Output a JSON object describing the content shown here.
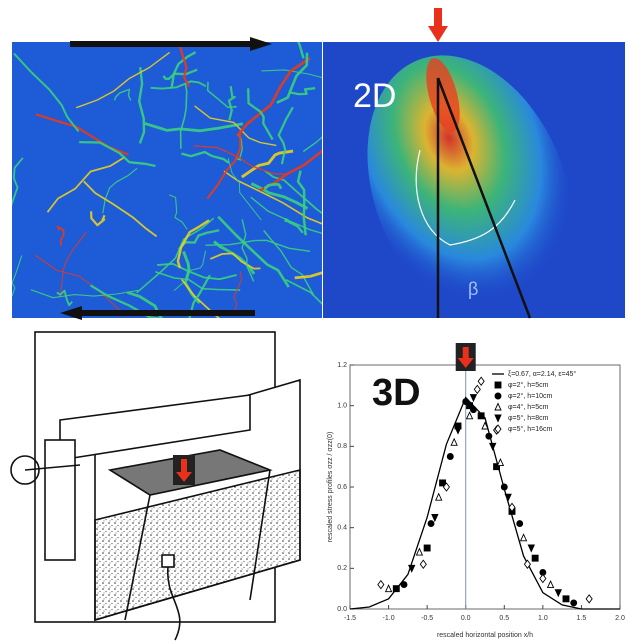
{
  "panels": {
    "label_2d": "2D",
    "angle_label": "β"
  },
  "chart_data": {
    "type": "scatter",
    "annotation": "3D",
    "xlabel": "rescaled horizontal position x/h",
    "ylabel": "rescaled stress profiles σzz / σzz(0)",
    "xlim": [
      -1.5,
      2.0
    ],
    "xticks": [
      -1.5,
      {
        "value": -1.0,
        "label": "-1.0"
      },
      -0.5,
      {
        "value": 0.0,
        "label": "0.0"
      },
      0.5,
      {
        "value": 1.0,
        "label": "1.0"
      },
      1.5,
      {
        "value": 2.0,
        "label": "2.0"
      }
    ],
    "ylim": [
      0,
      1.2
    ],
    "yticks": [
      {
        "value": 0.0,
        "label": "0.0"
      },
      0.2,
      0.4,
      0.6,
      0.8,
      {
        "value": 1.0,
        "label": "1.0"
      },
      1.2
    ],
    "vline": 0.0,
    "vline_color": "#7f95b0",
    "legend": "upper right",
    "series": [
      {
        "name": "ξ=0.67, α=2.14, ε=45°",
        "mode": "line",
        "color": "#000000",
        "x": [
          -1.5,
          -1.25,
          -1.0,
          -0.75,
          -0.5,
          -0.25,
          0.0,
          0.25,
          0.5,
          0.75,
          1.0,
          1.25,
          1.5,
          1.75,
          2.0
        ],
        "values": [
          0.0,
          0.01,
          0.05,
          0.17,
          0.45,
          0.81,
          1.04,
          0.94,
          0.59,
          0.26,
          0.08,
          0.02,
          0.0,
          0.0,
          0.0
        ]
      },
      {
        "name": "φ=2°, h=5cm",
        "mode": "marker",
        "marker": "square",
        "filled": true,
        "color": "#000000",
        "x": [
          -0.9,
          -0.5,
          -0.3,
          -0.1,
          0.05,
          0.2,
          0.4,
          0.6,
          0.9,
          1.3
        ],
        "values": [
          0.1,
          0.3,
          0.62,
          0.9,
          1.0,
          0.95,
          0.7,
          0.48,
          0.25,
          0.05
        ]
      },
      {
        "name": "φ=2°, h=10cm",
        "mode": "marker",
        "marker": "circle",
        "filled": true,
        "color": "#000000",
        "x": [
          -0.8,
          -0.45,
          -0.2,
          0.0,
          0.1,
          0.3,
          0.5,
          0.7,
          1.0,
          1.4
        ],
        "values": [
          0.12,
          0.42,
          0.75,
          1.02,
          0.98,
          0.85,
          0.6,
          0.42,
          0.18,
          0.03
        ]
      },
      {
        "name": "φ=4°, h=5cm",
        "mode": "marker",
        "marker": "triangle",
        "filled": false,
        "color": "#000000",
        "x": [
          -1.0,
          -0.6,
          -0.35,
          -0.15,
          0.05,
          0.25,
          0.45,
          0.75,
          1.1
        ],
        "values": [
          0.1,
          0.28,
          0.55,
          0.82,
          0.95,
          0.9,
          0.72,
          0.35,
          0.12
        ]
      },
      {
        "name": "φ=5°, h=8cm",
        "mode": "marker",
        "marker": "triangle-down",
        "filled": true,
        "color": "#000000",
        "x": [
          -0.7,
          -0.4,
          -0.1,
          0.1,
          0.35,
          0.55,
          0.85,
          1.2
        ],
        "values": [
          0.2,
          0.45,
          0.88,
          1.04,
          0.8,
          0.55,
          0.3,
          0.08
        ]
      },
      {
        "name": "φ=5°, h=16cm",
        "mode": "marker",
        "marker": "diamond",
        "filled": false,
        "color": "#000000",
        "x": [
          -1.1,
          -0.55,
          -0.25,
          0.15,
          0.2,
          0.4,
          0.6,
          0.8,
          1.0,
          1.6
        ],
        "values": [
          0.12,
          0.22,
          0.6,
          1.08,
          1.12,
          0.88,
          0.5,
          0.22,
          0.15,
          0.05
        ]
      }
    ]
  }
}
